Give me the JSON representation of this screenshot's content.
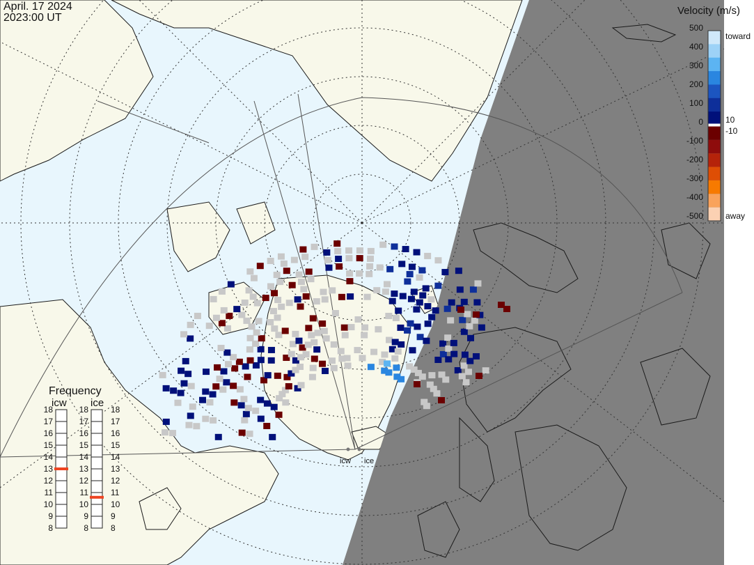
{
  "header": {
    "date": "April. 17 2024",
    "time": "2023:00 UT"
  },
  "colors": {
    "ocean": "#e8f6fd",
    "land": "#f8f8ea",
    "night": "#808080",
    "coast": "#1a1a1a",
    "grid": "#333333",
    "noscatter": "#c8c8c8"
  },
  "legend": {
    "title": "Velocity (m/s)",
    "ticks": [
      "500",
      "400",
      "300",
      "200",
      "100",
      "0",
      "-100",
      "-200",
      "-300",
      "-400",
      "-500"
    ],
    "toward_label": "toward",
    "away_label": "away",
    "upper_cut": "10",
    "lower_cut": "-10",
    "toward_colors": [
      "#cfe8fa",
      "#9dd2f7",
      "#5cb4f2",
      "#2a86e0",
      "#1c55c0",
      "#0e2f9a",
      "#00107a"
    ],
    "away_colors": [
      "#6b0000",
      "#8e0c0c",
      "#b5230a",
      "#de4e05",
      "#f77a00",
      "#f9a35c",
      "#fbd1b3"
    ]
  },
  "frequency": {
    "title": "Frequency",
    "radars": [
      "icw",
      "ice"
    ],
    "scale": [
      "18",
      "17",
      "16",
      "15",
      "14",
      "13",
      "12",
      "11",
      "10",
      "9",
      "8"
    ],
    "icw_value": 13,
    "ice_value": 10.6,
    "marker_color": "#ee4422"
  },
  "stations": [
    "icw",
    "ice"
  ]
}
